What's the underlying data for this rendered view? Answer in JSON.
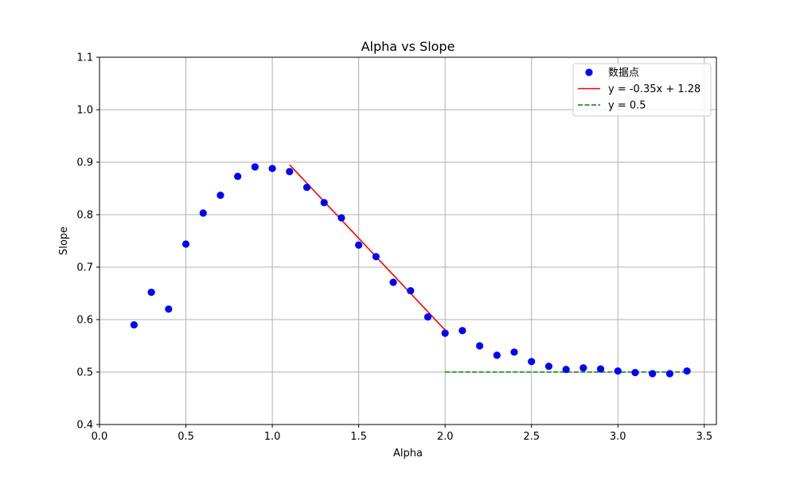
{
  "chart_data": {
    "type": "scatter",
    "title": "Alpha vs Slope",
    "xlabel": "Alpha",
    "ylabel": "Slope",
    "xlim": [
      0.0,
      3.57
    ],
    "ylim": [
      0.4,
      1.1
    ],
    "x_ticks": [
      0.0,
      0.5,
      1.0,
      1.5,
      2.0,
      2.5,
      3.0,
      3.5
    ],
    "y_ticks": [
      0.4,
      0.5,
      0.6,
      0.7,
      0.8,
      0.9,
      1.0,
      1.1
    ],
    "x_tick_labels": [
      "0.0",
      "0.5",
      "1.0",
      "1.5",
      "2.0",
      "2.5",
      "3.0",
      "3.5"
    ],
    "y_tick_labels": [
      "0.4",
      "0.5",
      "0.6",
      "0.7",
      "0.8",
      "0.9",
      "1.0",
      "1.1"
    ],
    "grid": true,
    "legend_position": "top-right",
    "series": [
      {
        "name": "数据点",
        "kind": "scatter",
        "color": "#0000ff",
        "x": [
          0.2,
          0.3,
          0.4,
          0.5,
          0.6,
          0.7,
          0.8,
          0.9,
          1.0,
          1.1,
          1.2,
          1.3,
          1.4,
          1.5,
          1.6,
          1.7,
          1.8,
          1.9,
          2.0,
          2.1,
          2.2,
          2.3,
          2.4,
          2.5,
          2.6,
          2.7,
          2.8,
          2.9,
          3.0,
          3.1,
          3.2,
          3.3,
          3.4
        ],
        "y": [
          0.59,
          0.652,
          0.62,
          0.744,
          0.803,
          0.837,
          0.873,
          0.891,
          0.888,
          0.882,
          0.852,
          0.823,
          0.794,
          0.742,
          0.72,
          0.671,
          0.655,
          0.605,
          0.574,
          0.579,
          0.55,
          0.532,
          0.538,
          0.52,
          0.511,
          0.505,
          0.508,
          0.506,
          0.502,
          0.499,
          0.497,
          0.497,
          0.502
        ]
      },
      {
        "name": "y = -0.35x + 1.28",
        "kind": "line",
        "style": "solid",
        "color": "#ff0000",
        "x": [
          1.1,
          2.0
        ],
        "y": [
          0.895,
          0.58
        ]
      },
      {
        "name": "y = 0.5",
        "kind": "line",
        "style": "dashed",
        "color": "#008000",
        "x": [
          2.0,
          3.4
        ],
        "y": [
          0.5,
          0.5
        ]
      }
    ]
  }
}
